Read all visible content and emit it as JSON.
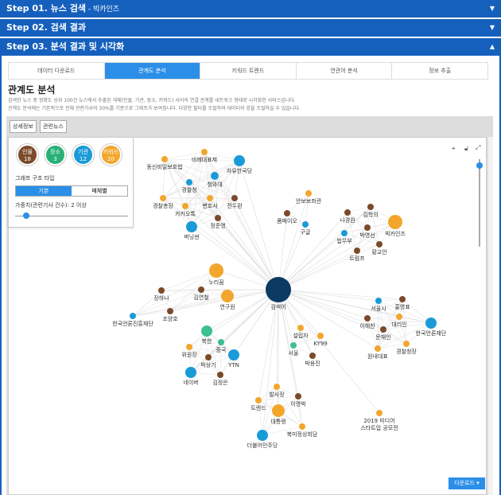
{
  "steps": [
    {
      "title": "Step 01. 뉴스 검색",
      "sub": " - 빅카인즈",
      "arrow": "▼"
    },
    {
      "title": "Step 02. 검색 결과",
      "sub": "",
      "arrow": "▼"
    },
    {
      "title": "Step 03. 분석 결과 및 시각화",
      "sub": "",
      "arrow": "▲"
    }
  ],
  "tabs": [
    "데이터 다운로드",
    "관계도 분석",
    "키워드 트렌드",
    "연관어 분석",
    "정보 추출"
  ],
  "active_tab": 1,
  "section_title": "관계도 분석",
  "description": [
    "검색한 뉴스 중 정확도 상위 100건 뉴스에서 추출된 개체(인물, 기관, 장소, 키워드) 사이의 연결 관계를 네트워크 형태로 시각화한 서비스입니다.",
    "관계도 분석에는 기본적으로 전체 관련기사의 30%를 기준으로 그래프가 보여집니다. 다양한 필터를 조절하여 데이터의 양을 조절하실 수 있습니다."
  ],
  "sub_buttons": [
    "상세정보",
    "관련뉴스"
  ],
  "legend": [
    {
      "label": "인물",
      "count": "18",
      "color": "#7b4a2a"
    },
    {
      "label": "장소",
      "count": "3",
      "color": "#27b077"
    },
    {
      "label": "기관",
      "count": "12",
      "color": "#1a9bd7"
    },
    {
      "label": "키워드",
      "count": "20",
      "color": "#f2a62c"
    }
  ],
  "graph_type_label": "그래프 구조 타입",
  "graph_types": [
    "기본",
    "매체별"
  ],
  "weight_label": "가중치(관련기사 건수): 2 이상",
  "weight_value": 2,
  "download_label": "다운로드 ▾",
  "colors": {
    "hub": "#0d3a63",
    "person": "#7b4a2a",
    "place": "#3dbf8f",
    "org": "#1a9bd7",
    "keyword": "#f2a62c"
  },
  "nodes": [
    {
      "name": "검색어",
      "type": "hub",
      "g": 0
    },
    {
      "name": "동신비밀보호법",
      "type": "keyword",
      "g": 1
    },
    {
      "name": "비례대표제",
      "type": "keyword",
      "g": 1
    },
    {
      "name": "자유한국당",
      "type": "org",
      "g": 1
    },
    {
      "name": "경찰청",
      "type": "org",
      "g": 1
    },
    {
      "name": "청와대",
      "type": "org",
      "g": 1
    },
    {
      "name": "경찰총장",
      "type": "keyword",
      "g": 1
    },
    {
      "name": "카카오톡",
      "type": "keyword",
      "g": 1
    },
    {
      "name": "변호사",
      "type": "keyword",
      "g": 1
    },
    {
      "name": "전두환",
      "type": "person",
      "g": 1
    },
    {
      "name": "정준영",
      "type": "person",
      "g": 1
    },
    {
      "name": "버닝썬",
      "type": "org",
      "g": 1
    },
    {
      "name": "안보보좌관",
      "type": "keyword",
      "g": 2
    },
    {
      "name": "폼페이오",
      "type": "person",
      "g": 2
    },
    {
      "name": "구글",
      "type": "org",
      "g": 2
    },
    {
      "name": "나경원",
      "type": "person",
      "g": 3
    },
    {
      "name": "김학의",
      "type": "person",
      "g": 3
    },
    {
      "name": "빅카인즈",
      "type": "keyword",
      "g": 3
    },
    {
      "name": "박영선",
      "type": "person",
      "g": 3
    },
    {
      "name": "법무부",
      "type": "org",
      "g": 3
    },
    {
      "name": "황교안",
      "type": "person",
      "g": 3
    },
    {
      "name": "트럼프",
      "type": "person",
      "g": 3
    },
    {
      "name": "누리꿈",
      "type": "keyword",
      "g": 4
    },
    {
      "name": "김연철",
      "type": "person",
      "g": 4
    },
    {
      "name": "장하나",
      "type": "person",
      "g": 4
    },
    {
      "name": "연구원",
      "type": "keyword",
      "g": 4
    },
    {
      "name": "조양호",
      "type": "person",
      "g": 4
    },
    {
      "name": "한국언론진흥재단",
      "type": "org",
      "g": 4
    },
    {
      "name": "북한",
      "type": "place",
      "g": 5
    },
    {
      "name": "중국",
      "type": "place",
      "g": 5
    },
    {
      "name": "위원장",
      "type": "keyword",
      "g": 5
    },
    {
      "name": "YTN",
      "type": "org",
      "g": 5
    },
    {
      "name": "박상기",
      "type": "person",
      "g": 5
    },
    {
      "name": "네이버",
      "type": "org",
      "g": 5
    },
    {
      "name": "김정은",
      "type": "person",
      "g": 5
    },
    {
      "name": "설립자",
      "type": "keyword",
      "g": 6
    },
    {
      "name": "KY99",
      "type": "keyword",
      "g": 6
    },
    {
      "name": "서울",
      "type": "place",
      "g": 6
    },
    {
      "name": "박용진",
      "type": "person",
      "g": 6
    },
    {
      "name": "서울시",
      "type": "org",
      "g": 7
    },
    {
      "name": "홍영표",
      "type": "person",
      "g": 7
    },
    {
      "name": "이해찬",
      "type": "person",
      "g": 7
    },
    {
      "name": "대리인",
      "type": "keyword",
      "g": 7
    },
    {
      "name": "한국언론재단",
      "type": "org",
      "g": 7
    },
    {
      "name": "문재인",
      "type": "person",
      "g": 7
    },
    {
      "name": "원내대표",
      "type": "keyword",
      "g": 7
    },
    {
      "name": "경찰청장",
      "type": "keyword",
      "g": 7
    },
    {
      "name": "발사장",
      "type": "keyword",
      "g": 8
    },
    {
      "name": "트렌드",
      "type": "keyword",
      "g": 8
    },
    {
      "name": "이명박",
      "type": "person",
      "g": 8
    },
    {
      "name": "대통령",
      "type": "keyword",
      "g": 8
    },
    {
      "name": "북미정상회담",
      "type": "keyword",
      "g": 8
    },
    {
      "name": "더불어민주당",
      "type": "org",
      "g": 8
    },
    {
      "name": "2019 미디어 스타트업 공모전",
      "type": "keyword",
      "g": 9
    }
  ]
}
